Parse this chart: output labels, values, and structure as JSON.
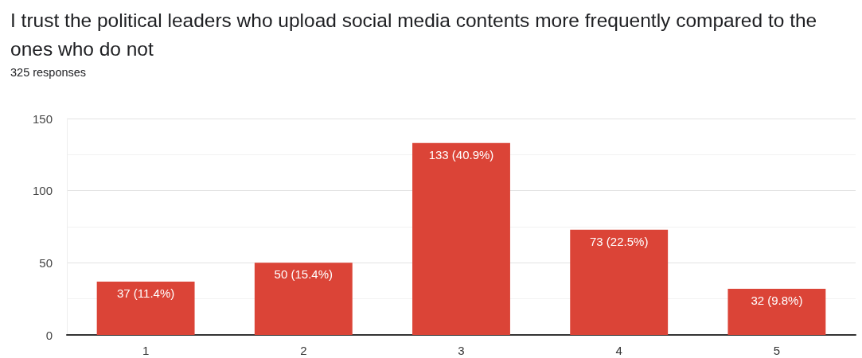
{
  "chart_data": {
    "type": "bar",
    "title": "I trust the political leaders who upload social media contents more frequently compared to the ones who do not",
    "subtitle": "325 responses",
    "categories": [
      "1",
      "2",
      "3",
      "4",
      "5"
    ],
    "values": [
      37,
      50,
      133,
      73,
      32
    ],
    "color": "#db4437",
    "value_labels": [
      "37 (11.4%)",
      "50 (15.4%)",
      "133 (40.9%)",
      "73 (22.5%)",
      "32 (9.8%)"
    ],
    "ylim": [
      0,
      150
    ],
    "yticks": [
      0,
      {
        "value": 25,
        "label": null
      },
      50,
      {
        "value": 75,
        "label": null
      },
      100,
      {
        "value": 125,
        "label": null
      },
      150
    ],
    "grid": "y"
  }
}
